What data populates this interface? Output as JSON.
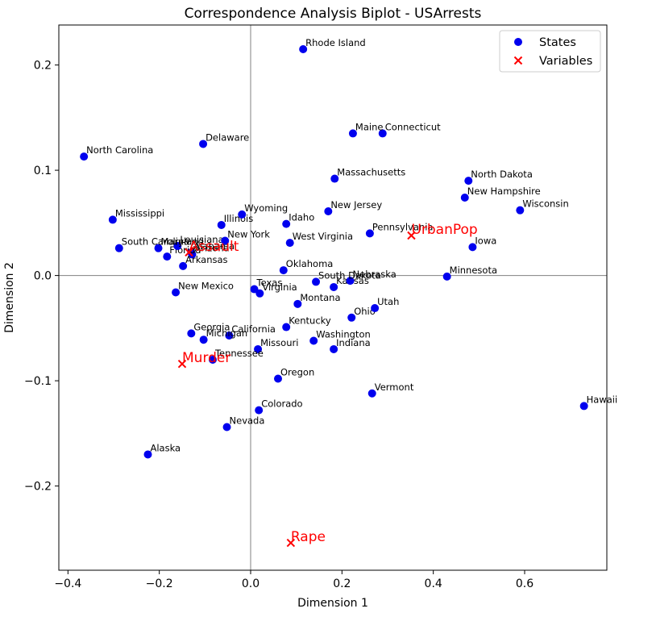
{
  "chart_data": {
    "type": "scatter",
    "title": "Correspondence Analysis Biplot - USArrests",
    "xlabel": "Dimension 1",
    "ylabel": "Dimension 2",
    "xlim": [
      -0.42,
      0.78
    ],
    "ylim": [
      -0.28,
      0.238
    ],
    "xticks": [
      -0.4,
      -0.2,
      0.0,
      0.2,
      0.4,
      0.6
    ],
    "xtick_labels": [
      "−0.4",
      "−0.2",
      "0.0",
      "0.2",
      "0.4",
      "0.6"
    ],
    "yticks": [
      -0.2,
      -0.1,
      0.0,
      0.1,
      0.2
    ],
    "ytick_labels": [
      "−0.2",
      "−0.1",
      "0.0",
      "0.1",
      "0.2"
    ],
    "reference_lines": {
      "x": 0,
      "y": 0
    },
    "grid": false,
    "legend_position": "top-right",
    "series": [
      {
        "name": "States",
        "marker": "circle",
        "color": "#0000ee",
        "points": [
          {
            "label": "Alabama",
            "x": -0.13,
            "y": 0.022
          },
          {
            "label": "Alaska",
            "x": -0.225,
            "y": -0.17
          },
          {
            "label": "Arizona",
            "x": -0.128,
            "y": 0.02
          },
          {
            "label": "Arkansas",
            "x": -0.148,
            "y": 0.009
          },
          {
            "label": "California",
            "x": -0.047,
            "y": -0.057
          },
          {
            "label": "Colorado",
            "x": 0.018,
            "y": -0.128
          },
          {
            "label": "Connecticut",
            "x": 0.289,
            "y": 0.135
          },
          {
            "label": "Delaware",
            "x": -0.104,
            "y": 0.125
          },
          {
            "label": "Florida",
            "x": -0.183,
            "y": 0.018
          },
          {
            "label": "Georgia",
            "x": -0.13,
            "y": -0.055
          },
          {
            "label": "Hawaii",
            "x": 0.73,
            "y": -0.124
          },
          {
            "label": "Idaho",
            "x": 0.078,
            "y": 0.049
          },
          {
            "label": "Illinois",
            "x": -0.064,
            "y": 0.048
          },
          {
            "label": "Indiana",
            "x": 0.182,
            "y": -0.07
          },
          {
            "label": "Iowa",
            "x": 0.486,
            "y": 0.027
          },
          {
            "label": "Kansas",
            "x": 0.182,
            "y": -0.011
          },
          {
            "label": "Kentucky",
            "x": 0.078,
            "y": -0.049
          },
          {
            "label": "Louisiana",
            "x": -0.16,
            "y": 0.028
          },
          {
            "label": "Maine",
            "x": 0.224,
            "y": 0.135
          },
          {
            "label": "Maryland",
            "x": -0.202,
            "y": 0.026
          },
          {
            "label": "Massachusetts",
            "x": 0.184,
            "y": 0.092
          },
          {
            "label": "Michigan",
            "x": -0.103,
            "y": -0.061
          },
          {
            "label": "Minnesota",
            "x": 0.43,
            "y": -0.001
          },
          {
            "label": "Mississippi",
            "x": -0.302,
            "y": 0.053
          },
          {
            "label": "Missouri",
            "x": 0.016,
            "y": -0.07
          },
          {
            "label": "Montana",
            "x": 0.103,
            "y": -0.027
          },
          {
            "label": "Nebraska",
            "x": 0.218,
            "y": -0.005
          },
          {
            "label": "Nevada",
            "x": -0.052,
            "y": -0.144
          },
          {
            "label": "New Hampshire",
            "x": 0.469,
            "y": 0.074
          },
          {
            "label": "New Jersey",
            "x": 0.17,
            "y": 0.061
          },
          {
            "label": "New Mexico",
            "x": -0.164,
            "y": -0.016
          },
          {
            "label": "New York",
            "x": -0.056,
            "y": 0.033
          },
          {
            "label": "North Carolina",
            "x": -0.365,
            "y": 0.113
          },
          {
            "label": "North Dakota",
            "x": 0.477,
            "y": 0.09
          },
          {
            "label": "Ohio",
            "x": 0.221,
            "y": -0.04
          },
          {
            "label": "Oklahoma",
            "x": 0.072,
            "y": 0.005
          },
          {
            "label": "Oregon",
            "x": 0.06,
            "y": -0.098
          },
          {
            "label": "Pennsylvania",
            "x": 0.261,
            "y": 0.04
          },
          {
            "label": "Rhode Island",
            "x": 0.115,
            "y": 0.215
          },
          {
            "label": "South Carolina",
            "x": -0.288,
            "y": 0.026
          },
          {
            "label": "South Dakota",
            "x": 0.143,
            "y": -0.006
          },
          {
            "label": "Tennessee",
            "x": -0.083,
            "y": -0.08
          },
          {
            "label": "Texas",
            "x": 0.008,
            "y": -0.013
          },
          {
            "label": "Utah",
            "x": 0.272,
            "y": -0.031
          },
          {
            "label": "Vermont",
            "x": 0.266,
            "y": -0.112
          },
          {
            "label": "Virginia",
            "x": 0.02,
            "y": -0.017
          },
          {
            "label": "Washington",
            "x": 0.138,
            "y": -0.062
          },
          {
            "label": "West Virginia",
            "x": 0.086,
            "y": 0.031
          },
          {
            "label": "Wisconsin",
            "x": 0.59,
            "y": 0.062
          },
          {
            "label": "Wyoming",
            "x": -0.019,
            "y": 0.058
          }
        ]
      },
      {
        "name": "Variables",
        "marker": "x",
        "color": "#ff0000",
        "points": [
          {
            "label": "Murder",
            "x": -0.15,
            "y": -0.084
          },
          {
            "label": "Assault",
            "x": -0.135,
            "y": 0.022
          },
          {
            "label": "UrbanPop",
            "x": 0.352,
            "y": 0.038
          },
          {
            "label": "Rape",
            "x": 0.088,
            "y": -0.254
          }
        ]
      }
    ]
  }
}
